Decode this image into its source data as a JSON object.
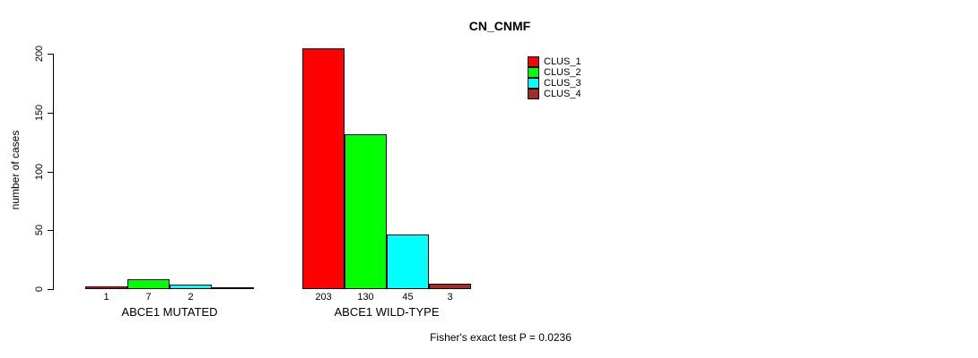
{
  "chart_data": {
    "type": "bar",
    "title": "CN_CNMF",
    "ylabel": "number of cases",
    "xlabel": "",
    "ylim": [
      0,
      200
    ],
    "yticks": [
      0,
      50,
      100,
      150,
      200
    ],
    "grid": false,
    "legend_position": "top-right",
    "categories": [
      "ABCE1 MUTATED",
      "ABCE1 WILD-TYPE"
    ],
    "series": [
      {
        "name": "CLUS_1",
        "color": "#FF0000",
        "values": [
          1,
          203
        ]
      },
      {
        "name": "CLUS_2",
        "color": "#00FF00",
        "values": [
          7,
          130
        ]
      },
      {
        "name": "CLUS_3",
        "color": "#00FFFF",
        "values": [
          2,
          45
        ]
      },
      {
        "name": "CLUS_4",
        "color": "#A52A2A",
        "values": [
          0,
          3
        ]
      }
    ],
    "bar_value_labels": [
      [
        "1",
        "7",
        "2",
        ""
      ],
      [
        "203",
        "130",
        "45",
        "3"
      ]
    ],
    "legend": [
      {
        "name": "CLUS_1",
        "color": "#FF0000"
      },
      {
        "name": "CLUS_2",
        "color": "#00FF00"
      },
      {
        "name": "CLUS_3",
        "color": "#00FFFF"
      },
      {
        "name": "CLUS_4",
        "color": "#A52A2A"
      }
    ],
    "annotation": "Fisher's exact test P = 0.0236"
  }
}
